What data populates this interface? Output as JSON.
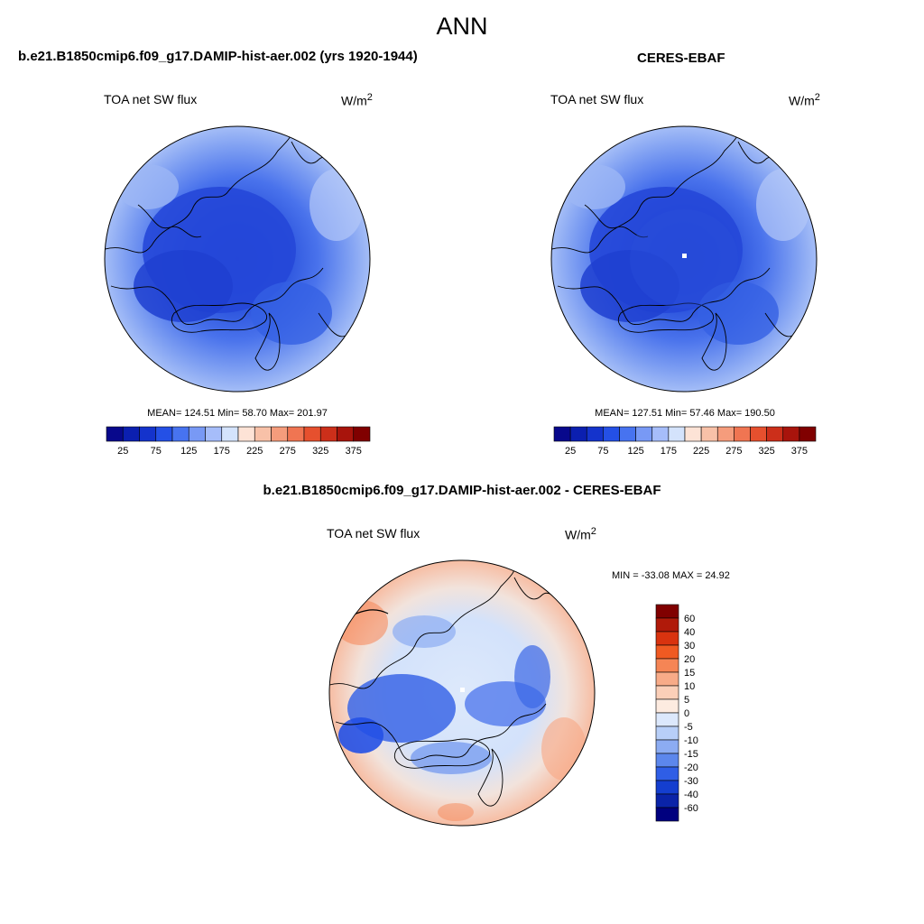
{
  "figure": {
    "season": "ANN"
  },
  "panels": [
    {
      "title": "b.e21.B1850cmip6.f09_g17.DAMIP-hist-aer.002 (yrs 1920-1944)",
      "variable": "TOA net SW flux",
      "units": "W/m",
      "units_exp": "2",
      "stats": "MEAN= 124.51  Min=  58.70  Max= 201.97",
      "colorbar": {
        "labels": [
          "25",
          "75",
          "125",
          "175",
          "225",
          "275",
          "325",
          "375"
        ],
        "colors": [
          "#08088c",
          "#0b1fb0",
          "#1433cc",
          "#2450e6",
          "#4773f0",
          "#7899f5",
          "#a6bdfa",
          "#d4e3fc",
          "#fde3d6",
          "#f8c1a8",
          "#f59c7c",
          "#f07552",
          "#e6502e",
          "#cc2f1a",
          "#a8140c",
          "#800000"
        ]
      }
    },
    {
      "title": "CERES-EBAF",
      "variable": "TOA net SW flux",
      "units": "W/m",
      "units_exp": "2",
      "stats": "MEAN= 127.51  Min=  57.46  Max= 190.50",
      "colorbar": {
        "labels": [
          "25",
          "75",
          "125",
          "175",
          "225",
          "275",
          "325",
          "375"
        ],
        "colors": [
          "#08088c",
          "#0b1fb0",
          "#1433cc",
          "#2450e6",
          "#4773f0",
          "#7899f5",
          "#a6bdfa",
          "#d4e3fc",
          "#fde3d6",
          "#f8c1a8",
          "#f59c7c",
          "#f07552",
          "#e6502e",
          "#cc2f1a",
          "#a8140c",
          "#800000"
        ]
      }
    },
    {
      "title": "b.e21.B1850cmip6.f09_g17.DAMIP-hist-aer.002 - CERES-EBAF",
      "variable": "TOA net SW flux",
      "units": "W/m",
      "units_exp": "2",
      "stats": "MIN = -33.08 MAX =  24.92",
      "colorbar": {
        "labels": [
          "60",
          "40",
          "30",
          "20",
          "15",
          "10",
          "5",
          "0",
          "-5",
          "-10",
          "-15",
          "-20",
          "-30",
          "-40",
          "-60"
        ],
        "colors": [
          "#800000",
          "#b01a0a",
          "#d9330f",
          "#f05a22",
          "#f58555",
          "#f8ab88",
          "#fbcfb8",
          "#fdebe0",
          "#dce8fc",
          "#b8cff8",
          "#8cacf2",
          "#5c87ec",
          "#2f5ee6",
          "#143ecf",
          "#0a23a8",
          "#00007f"
        ]
      }
    }
  ],
  "colors": {
    "ocean_mid": "#7d9ef2",
    "ocean_light": "#a9c1f7",
    "arctic_core": "#1f44d6",
    "land_dark": "#1738c8",
    "diff_warm": "#f7b99d",
    "diff_neutral": "#dde9fb",
    "diff_cold": "#3b66e6"
  }
}
